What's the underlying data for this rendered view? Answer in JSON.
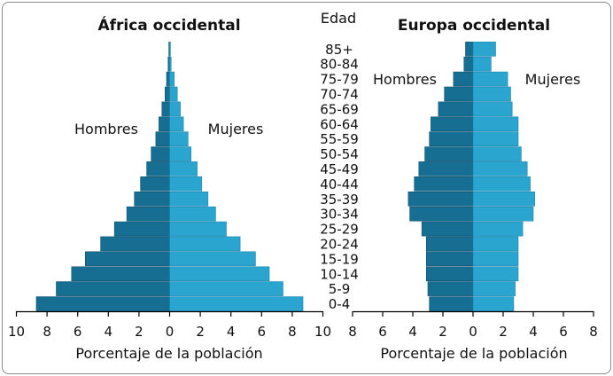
{
  "chart_data": [
    {
      "type": "bar",
      "title": "África occidental",
      "xlabel": "Porcentaje de la población",
      "ages": [
        "0-4",
        "5-9",
        "10-14",
        "15-19",
        "20-24",
        "25-29",
        "30-34",
        "35-39",
        "40-44",
        "45-49",
        "50-54",
        "55-59",
        "60-64",
        "65-69",
        "70-74",
        "75-79",
        "80-84",
        "85+"
      ],
      "series": [
        {
          "name": "Hombres",
          "values": [
            8.7,
            7.4,
            6.4,
            5.5,
            4.5,
            3.6,
            2.8,
            2.3,
            1.9,
            1.5,
            1.2,
            0.9,
            0.7,
            0.5,
            0.3,
            0.2,
            0.1,
            0.05
          ]
        },
        {
          "name": "Mujeres",
          "values": [
            8.7,
            7.4,
            6.5,
            5.6,
            4.6,
            3.7,
            3.0,
            2.5,
            2.1,
            1.8,
            1.4,
            1.2,
            0.9,
            0.7,
            0.5,
            0.3,
            0.1,
            0.05
          ]
        }
      ],
      "xlim": [
        -10,
        10
      ],
      "xticks": [
        "10",
        "8",
        "6",
        "4",
        "2",
        "0",
        "2",
        "4",
        "6",
        "8",
        "10"
      ]
    },
    {
      "type": "bar",
      "title": "Europa occidental",
      "xlabel": "Porcentaje de la población",
      "ages": [
        "0-4",
        "5-9",
        "10-14",
        "15-19",
        "20-24",
        "25-29",
        "30-34",
        "35-39",
        "40-44",
        "45-49",
        "50-54",
        "55-59",
        "60-64",
        "65-69",
        "70-74",
        "75-79",
        "80-84",
        "85+"
      ],
      "series": [
        {
          "name": "Hombres",
          "values": [
            2.9,
            3.0,
            3.1,
            3.1,
            3.1,
            3.4,
            4.2,
            4.3,
            3.9,
            3.6,
            3.2,
            2.9,
            2.8,
            2.3,
            1.9,
            1.3,
            0.6,
            0.5
          ]
        },
        {
          "name": "Mujeres",
          "values": [
            2.7,
            2.8,
            3.0,
            3.0,
            3.0,
            3.3,
            4.0,
            4.1,
            3.8,
            3.6,
            3.2,
            3.0,
            3.0,
            2.6,
            2.5,
            2.3,
            1.2,
            1.5
          ]
        }
      ],
      "xlim": [
        -8,
        8
      ],
      "xticks": [
        "8",
        "6",
        "4",
        "2",
        "0",
        "2",
        "4",
        "6",
        "8"
      ]
    }
  ],
  "labels": {
    "edad": "Edad",
    "left_hombres": "Hombres",
    "left_mujeres": "Mujeres",
    "right_hombres": "Hombres",
    "right_mujeres": "Mujeres"
  },
  "colors": {
    "hombres": "#166f93",
    "mujeres": "#2aa5d0",
    "axis": "#000000"
  }
}
